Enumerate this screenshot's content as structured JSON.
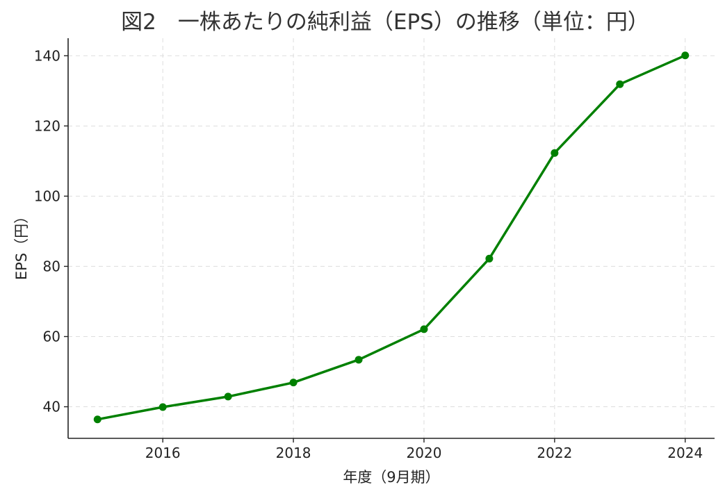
{
  "chart_data": {
    "type": "line",
    "title": "図2　一株あたりの純利益（EPS）の推移（単位：円）",
    "xlabel": "年度（9月期）",
    "ylabel": "EPS（円）",
    "x": [
      2015,
      2016,
      2017,
      2018,
      2019,
      2020,
      2021,
      2022,
      2023,
      2024
    ],
    "series": [
      {
        "values": [
          36.4,
          39.9,
          42.9,
          46.9,
          53.4,
          62.1,
          82.2,
          112.3,
          131.9,
          140.1
        ],
        "color": "#008000",
        "marker": "circle"
      }
    ],
    "xlim": [
      2014.55,
      2024.45
    ],
    "ylim": [
      31,
      145
    ],
    "xticks": [
      2016,
      2018,
      2020,
      2022,
      2024
    ],
    "yticks": [
      40,
      60,
      80,
      100,
      120,
      140
    ],
    "grid": true
  }
}
